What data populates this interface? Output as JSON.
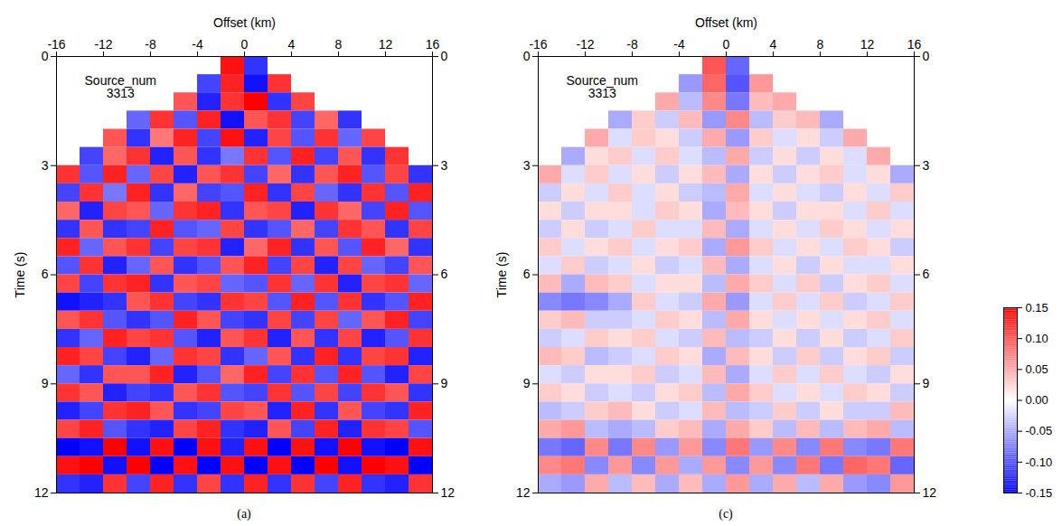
{
  "chart_data": {
    "type": "heatmap",
    "x_label": "Offset (km)",
    "y_label": "Time (s)",
    "xlim": [
      -16,
      16
    ],
    "xticks": [
      -16,
      -12,
      -8,
      -4,
      0,
      4,
      8,
      12,
      16
    ],
    "ylim": [
      0,
      12
    ],
    "yticks": [
      0,
      3,
      6,
      9,
      12
    ],
    "x_edges": [
      -16,
      -14,
      -12,
      -10,
      -8,
      -6,
      -4,
      -2,
      0,
      2,
      4,
      6,
      8,
      10,
      12,
      14,
      16
    ],
    "y_edges": [
      0,
      0.5,
      1,
      1.5,
      2,
      2.5,
      3,
      3.5,
      4,
      4.5,
      5,
      5.5,
      6,
      6.5,
      7,
      7.5,
      8,
      8.5,
      9,
      9.5,
      10,
      10.5,
      11,
      11.5,
      12
    ],
    "colorbar": {
      "range": [
        -0.15,
        0.15
      ],
      "ticks": [
        0.15,
        {
          "value": 0.1,
          "label": "0.10"
        },
        0.05,
        {
          "value": 0,
          "label": "0.00"
        },
        -0.05,
        {
          "value": -0.1,
          "label": "-0.10"
        },
        -0.15
      ],
      "colors": [
        "#0000ff",
        "#ffffff",
        "#ff0000"
      ]
    },
    "panels": [
      {
        "label": "(a)",
        "annotation": [
          "Source_num",
          "3313"
        ],
        "values": [
          [
            null,
            null,
            null,
            null,
            null,
            null,
            null,
            0.14,
            -0.12,
            null,
            null,
            null,
            null,
            null,
            null,
            null
          ],
          [
            null,
            null,
            null,
            null,
            null,
            null,
            -0.11,
            0.13,
            -0.14,
            0.12,
            null,
            null,
            null,
            null,
            null,
            null
          ],
          [
            null,
            null,
            null,
            null,
            null,
            0.1,
            -0.13,
            0.12,
            0.15,
            -0.12,
            0.11,
            null,
            null,
            null,
            null,
            null
          ],
          [
            null,
            null,
            null,
            -0.09,
            0.12,
            -0.1,
            0.13,
            -0.14,
            0.1,
            0.12,
            -0.11,
            0.09,
            -0.12,
            null,
            null,
            null
          ],
          [
            null,
            null,
            0.1,
            -0.12,
            0.08,
            0.13,
            -0.11,
            0.14,
            -0.13,
            0.11,
            -0.1,
            0.12,
            -0.09,
            0.11,
            null,
            null
          ],
          [
            null,
            -0.11,
            0.09,
            0.12,
            -0.13,
            0.1,
            -0.12,
            -0.08,
            0.12,
            -0.1,
            0.13,
            -0.11,
            0.1,
            -0.12,
            0.12,
            null
          ],
          [
            0.12,
            -0.1,
            0.13,
            -0.09,
            0.11,
            -0.13,
            0.1,
            0.12,
            -0.11,
            0.09,
            -0.12,
            0.1,
            0.13,
            -0.1,
            0.11,
            -0.12
          ],
          [
            -0.11,
            0.12,
            -0.08,
            0.13,
            -0.12,
            0.09,
            -0.11,
            -0.1,
            0.13,
            -0.12,
            0.11,
            -0.09,
            -0.12,
            0.12,
            -0.1,
            0.13
          ],
          [
            0.09,
            -0.13,
            0.11,
            0.1,
            -0.09,
            0.12,
            0.13,
            -0.12,
            0.1,
            0.11,
            -0.13,
            0.12,
            0.09,
            -0.11,
            0.13,
            -0.1
          ],
          [
            -0.12,
            0.1,
            -0.12,
            -0.11,
            0.13,
            -0.1,
            -0.09,
            0.11,
            -0.12,
            -0.1,
            0.09,
            -0.11,
            0.12,
            0.1,
            -0.12,
            0.11
          ],
          [
            0.13,
            -0.09,
            0.1,
            0.12,
            -0.11,
            0.11,
            0.12,
            -0.13,
            0.09,
            0.13,
            -0.12,
            0.1,
            -0.1,
            0.13,
            0.09,
            -0.12
          ],
          [
            -0.1,
            0.12,
            -0.13,
            -0.09,
            0.1,
            -0.12,
            -0.1,
            0.1,
            0.13,
            -0.11,
            0.11,
            -0.13,
            0.11,
            -0.09,
            -0.11,
            0.1
          ],
          [
            0.11,
            -0.11,
            0.12,
            0.13,
            -0.12,
            0.1,
            0.11,
            -0.09,
            -0.1,
            0.12,
            -0.09,
            0.12,
            -0.13,
            0.11,
            0.12,
            -0.09
          ],
          [
            -0.14,
            -0.13,
            -0.12,
            0.1,
            0.12,
            -0.11,
            -0.12,
            0.12,
            0.11,
            -0.1,
            0.13,
            -0.1,
            0.12,
            -0.12,
            -0.1,
            0.13
          ],
          [
            0.1,
            0.12,
            -0.1,
            -0.12,
            -0.1,
            0.13,
            0.1,
            -0.11,
            -0.12,
            0.11,
            -0.11,
            0.11,
            -0.09,
            0.1,
            0.13,
            -0.11
          ],
          [
            -0.12,
            -0.09,
            0.13,
            0.11,
            0.12,
            -0.1,
            -0.13,
            0.1,
            0.12,
            -0.13,
            0.1,
            -0.12,
            0.11,
            -0.13,
            -0.1,
            0.12
          ],
          [
            0.13,
            0.11,
            -0.11,
            -0.13,
            -0.09,
            0.12,
            0.11,
            -0.12,
            -0.09,
            0.1,
            -0.12,
            0.13,
            -0.12,
            0.11,
            0.12,
            -0.13
          ],
          [
            -0.09,
            -0.12,
            0.1,
            0.1,
            0.13,
            -0.13,
            -0.1,
            0.09,
            0.13,
            -0.11,
            0.12,
            -0.1,
            0.13,
            -0.1,
            -0.13,
            0.11
          ],
          [
            0.12,
            0.1,
            -0.13,
            -0.11,
            -0.12,
            0.1,
            0.12,
            -0.1,
            -0.11,
            0.12,
            -0.1,
            0.11,
            -0.11,
            0.12,
            0.1,
            -0.12
          ],
          [
            -0.13,
            -0.11,
            0.12,
            0.13,
            0.1,
            -0.12,
            -0.11,
            0.11,
            0.1,
            -0.13,
            0.13,
            -0.12,
            0.1,
            -0.11,
            -0.12,
            0.13
          ],
          [
            0.11,
            0.13,
            -0.1,
            -0.12,
            -0.13,
            0.11,
            0.13,
            -0.12,
            -0.13,
            0.1,
            -0.11,
            0.13,
            -0.13,
            0.12,
            0.11,
            -0.1
          ],
          [
            -0.15,
            -0.14,
            0.15,
            -0.14,
            0.14,
            -0.15,
            0.14,
            -0.13,
            0.14,
            -0.15,
            0.14,
            -0.14,
            0.15,
            -0.14,
            -0.15,
            0.14
          ],
          [
            0.14,
            0.15,
            -0.14,
            0.15,
            -0.15,
            0.14,
            -0.15,
            0.14,
            -0.15,
            0.14,
            -0.15,
            0.15,
            -0.14,
            0.15,
            0.14,
            -0.15
          ],
          [
            -0.12,
            -0.13,
            0.12,
            -0.11,
            0.13,
            -0.12,
            0.11,
            -0.12,
            0.13,
            -0.12,
            0.12,
            -0.11,
            0.13,
            -0.12,
            -0.13,
            0.12
          ]
        ]
      },
      {
        "label": "(c)",
        "annotation": [
          "Source_num",
          "3313"
        ],
        "values": [
          [
            null,
            null,
            null,
            null,
            null,
            null,
            null,
            0.1,
            -0.09,
            null,
            null,
            null,
            null,
            null,
            null,
            null
          ],
          [
            null,
            null,
            null,
            null,
            null,
            null,
            -0.06,
            0.09,
            -0.1,
            0.06,
            null,
            null,
            null,
            null,
            null,
            null
          ],
          [
            null,
            null,
            null,
            null,
            null,
            0.05,
            -0.04,
            0.07,
            -0.08,
            0.04,
            0.05,
            null,
            null,
            null,
            null,
            null
          ],
          [
            null,
            null,
            null,
            -0.05,
            0.03,
            -0.03,
            0.04,
            -0.06,
            0.07,
            -0.04,
            0.03,
            0.04,
            -0.05,
            null,
            null,
            null
          ],
          [
            null,
            null,
            0.05,
            -0.02,
            0.03,
            0.02,
            -0.03,
            0.05,
            -0.06,
            0.03,
            -0.02,
            0.02,
            -0.03,
            0.05,
            null,
            null
          ],
          [
            null,
            -0.05,
            0.02,
            0.03,
            -0.02,
            0.03,
            -0.02,
            -0.04,
            0.05,
            -0.03,
            0.02,
            -0.03,
            0.02,
            -0.02,
            0.05,
            null
          ],
          [
            0.05,
            -0.02,
            0.03,
            -0.02,
            0.02,
            -0.03,
            0.02,
            0.04,
            -0.05,
            0.02,
            -0.03,
            0.02,
            0.03,
            -0.02,
            0.02,
            -0.05
          ],
          [
            -0.03,
            0.02,
            -0.02,
            0.03,
            -0.02,
            0.02,
            -0.03,
            -0.04,
            0.05,
            -0.02,
            0.02,
            -0.02,
            -0.03,
            0.02,
            -0.02,
            0.03
          ],
          [
            0.02,
            -0.03,
            0.02,
            0.02,
            -0.02,
            0.03,
            0.02,
            -0.05,
            0.04,
            0.02,
            -0.03,
            0.02,
            0.02,
            -0.02,
            0.03,
            -0.02
          ],
          [
            -0.03,
            0.02,
            -0.03,
            -0.02,
            0.03,
            -0.02,
            -0.02,
            0.04,
            -0.05,
            -0.02,
            0.02,
            -0.02,
            0.03,
            0.02,
            -0.02,
            0.02
          ],
          [
            0.03,
            -0.02,
            0.02,
            0.03,
            -0.02,
            0.02,
            0.03,
            -0.05,
            0.06,
            0.03,
            -0.02,
            0.02,
            -0.02,
            0.03,
            0.02,
            -0.03
          ],
          [
            -0.02,
            0.03,
            -0.03,
            -0.02,
            0.02,
            -0.03,
            -0.02,
            0.04,
            -0.05,
            -0.02,
            0.02,
            -0.03,
            0.02,
            -0.02,
            -0.02,
            0.02
          ],
          [
            0.04,
            -0.05,
            0.04,
            0.03,
            -0.02,
            0.02,
            0.02,
            -0.04,
            0.05,
            0.03,
            -0.02,
            0.03,
            -0.03,
            0.02,
            0.03,
            -0.02
          ],
          [
            -0.07,
            -0.08,
            -0.07,
            -0.05,
            0.03,
            -0.02,
            -0.03,
            0.05,
            -0.06,
            -0.02,
            0.03,
            -0.02,
            0.03,
            -0.03,
            -0.02,
            0.03
          ],
          [
            0.03,
            0.04,
            -0.03,
            -0.03,
            -0.02,
            0.03,
            0.02,
            -0.04,
            0.05,
            0.02,
            -0.02,
            0.02,
            -0.02,
            0.02,
            0.03,
            -0.02
          ],
          [
            -0.03,
            -0.02,
            0.03,
            0.02,
            0.03,
            -0.02,
            -0.03,
            0.04,
            -0.04,
            -0.03,
            0.02,
            -0.03,
            0.02,
            -0.03,
            -0.02,
            0.03
          ],
          [
            0.04,
            0.03,
            -0.04,
            -0.03,
            -0.02,
            0.03,
            0.02,
            -0.05,
            0.04,
            0.02,
            -0.03,
            0.03,
            -0.03,
            0.02,
            0.03,
            -0.03
          ],
          [
            -0.02,
            -0.03,
            0.02,
            0.02,
            0.03,
            -0.03,
            -0.02,
            0.04,
            -0.05,
            -0.02,
            0.03,
            -0.02,
            0.03,
            -0.02,
            -0.03,
            0.02
          ],
          [
            0.03,
            0.02,
            -0.03,
            -0.02,
            -0.03,
            0.02,
            0.03,
            -0.04,
            0.05,
            0.03,
            -0.02,
            0.02,
            -0.02,
            0.03,
            0.02,
            -0.03
          ],
          [
            -0.04,
            -0.03,
            0.03,
            0.04,
            0.02,
            -0.03,
            -0.02,
            0.04,
            -0.04,
            -0.03,
            0.03,
            -0.03,
            0.02,
            -0.03,
            -0.03,
            0.04
          ],
          [
            0.05,
            0.06,
            -0.04,
            -0.05,
            -0.04,
            0.03,
            0.04,
            -0.05,
            0.05,
            0.03,
            -0.04,
            0.04,
            -0.04,
            0.04,
            0.05,
            -0.04
          ],
          [
            -0.08,
            -0.09,
            0.07,
            -0.08,
            0.07,
            -0.06,
            0.06,
            -0.07,
            0.08,
            -0.06,
            0.07,
            -0.07,
            0.08,
            -0.07,
            -0.08,
            0.08
          ],
          [
            0.07,
            0.08,
            -0.07,
            0.06,
            -0.07,
            0.06,
            -0.05,
            0.06,
            -0.07,
            0.06,
            -0.07,
            0.08,
            -0.08,
            0.09,
            0.08,
            -0.09
          ],
          [
            -0.05,
            -0.06,
            0.05,
            -0.04,
            0.04,
            -0.05,
            0.04,
            -0.05,
            0.06,
            -0.05,
            0.05,
            -0.04,
            0.05,
            -0.06,
            -0.07,
            0.06
          ]
        ]
      }
    ]
  }
}
